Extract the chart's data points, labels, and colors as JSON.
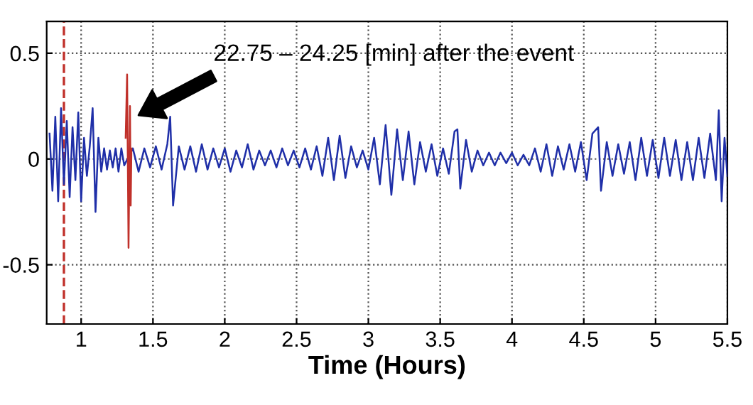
{
  "chart_data": {
    "type": "line",
    "xlabel": "Time (Hours)",
    "xlim": [
      0.76,
      5.5
    ],
    "ylim": [
      -0.78,
      0.65
    ],
    "xticks": [
      1,
      1.5,
      2,
      2.5,
      3,
      3.5,
      4,
      4.5,
      5,
      5.5
    ],
    "yticks": [
      -0.5,
      0,
      0.5
    ],
    "grid": true,
    "line_style": "solid",
    "ref_lines": [
      {
        "axis": "x",
        "value": 0.88,
        "color": "#c0302a",
        "line_style": "dashed"
      }
    ],
    "annotations": [
      "22.75 – 24.25 [min] after the event"
    ],
    "series": [
      {
        "color": "#1f2fa8",
        "x": [
          0.78,
          0.8,
          0.82,
          0.84,
          0.86,
          0.88,
          0.9,
          0.92,
          0.94,
          0.96,
          0.98,
          1.0,
          1.02,
          1.04,
          1.06,
          1.08,
          1.1,
          1.12,
          1.14,
          1.16,
          1.18,
          1.2,
          1.22,
          1.24,
          1.26,
          1.28,
          1.3,
          1.36,
          1.4,
          1.44,
          1.48,
          1.52,
          1.56,
          1.6,
          1.62,
          1.64,
          1.68,
          1.72,
          1.76,
          1.8,
          1.84,
          1.88,
          1.92,
          1.96,
          2.0,
          2.04,
          2.08,
          2.12,
          2.16,
          2.2,
          2.24,
          2.28,
          2.32,
          2.36,
          2.4,
          2.44,
          2.48,
          2.52,
          2.56,
          2.6,
          2.64,
          2.68,
          2.72,
          2.76,
          2.8,
          2.84,
          2.88,
          2.92,
          2.96,
          3.0,
          3.04,
          3.08,
          3.12,
          3.16,
          3.2,
          3.24,
          3.28,
          3.32,
          3.36,
          3.4,
          3.44,
          3.48,
          3.52,
          3.56,
          3.6,
          3.62,
          3.64,
          3.68,
          3.72,
          3.76,
          3.8,
          3.84,
          3.88,
          3.92,
          3.96,
          4.0,
          4.04,
          4.08,
          4.12,
          4.16,
          4.2,
          4.24,
          4.28,
          4.32,
          4.36,
          4.4,
          4.44,
          4.48,
          4.52,
          4.56,
          4.6,
          4.62,
          4.66,
          4.7,
          4.74,
          4.78,
          4.82,
          4.86,
          4.9,
          4.94,
          4.98,
          5.02,
          5.06,
          5.1,
          5.14,
          5.18,
          5.22,
          5.26,
          5.3,
          5.34,
          5.38,
          5.42,
          5.44,
          5.46,
          5.48,
          5.5
        ],
        "values": [
          0.12,
          -0.15,
          0.2,
          -0.2,
          0.24,
          -0.12,
          0.18,
          -0.18,
          0.15,
          -0.1,
          0.22,
          -0.2,
          0.1,
          -0.08,
          0.06,
          0.24,
          -0.25,
          0.1,
          -0.06,
          0.05,
          -0.05,
          0.04,
          -0.04,
          0.05,
          -0.06,
          0.05,
          -0.03,
          0.05,
          -0.06,
          0.05,
          -0.04,
          0.06,
          -0.05,
          0.07,
          0.2,
          -0.22,
          0.06,
          -0.05,
          0.06,
          -0.06,
          0.07,
          -0.05,
          0.05,
          -0.04,
          0.05,
          -0.06,
          0.04,
          -0.04,
          0.07,
          -0.05,
          0.04,
          -0.03,
          0.04,
          -0.04,
          0.05,
          -0.03,
          0.04,
          -0.04,
          0.05,
          -0.05,
          0.06,
          -0.08,
          0.1,
          -0.1,
          0.11,
          -0.09,
          0.06,
          -0.04,
          0.04,
          -0.05,
          0.1,
          -0.12,
          0.16,
          -0.17,
          0.14,
          -0.1,
          0.13,
          -0.12,
          0.08,
          -0.06,
          0.07,
          -0.08,
          0.05,
          -0.07,
          0.13,
          0.14,
          -0.14,
          0.09,
          -0.06,
          0.04,
          -0.03,
          0.03,
          -0.03,
          0.03,
          -0.02,
          0.03,
          -0.03,
          0.02,
          -0.03,
          0.05,
          -0.06,
          0.07,
          -0.08,
          0.06,
          -0.05,
          0.07,
          -0.06,
          0.08,
          -0.1,
          0.12,
          0.15,
          -0.15,
          0.08,
          -0.08,
          0.07,
          -0.07,
          0.08,
          -0.1,
          0.1,
          -0.08,
          0.09,
          -0.09,
          0.1,
          -0.08,
          0.09,
          -0.1,
          0.08,
          -0.1,
          0.1,
          -0.09,
          0.12,
          -0.1,
          0.23,
          -0.2,
          0.1,
          -0.08
        ]
      },
      {
        "color": "#c0302a",
        "x": [
          1.31,
          1.32,
          1.33,
          1.34,
          1.345,
          1.35
        ],
        "values": [
          0.1,
          0.4,
          -0.42,
          0.25,
          -0.22,
          0.05
        ]
      }
    ]
  }
}
